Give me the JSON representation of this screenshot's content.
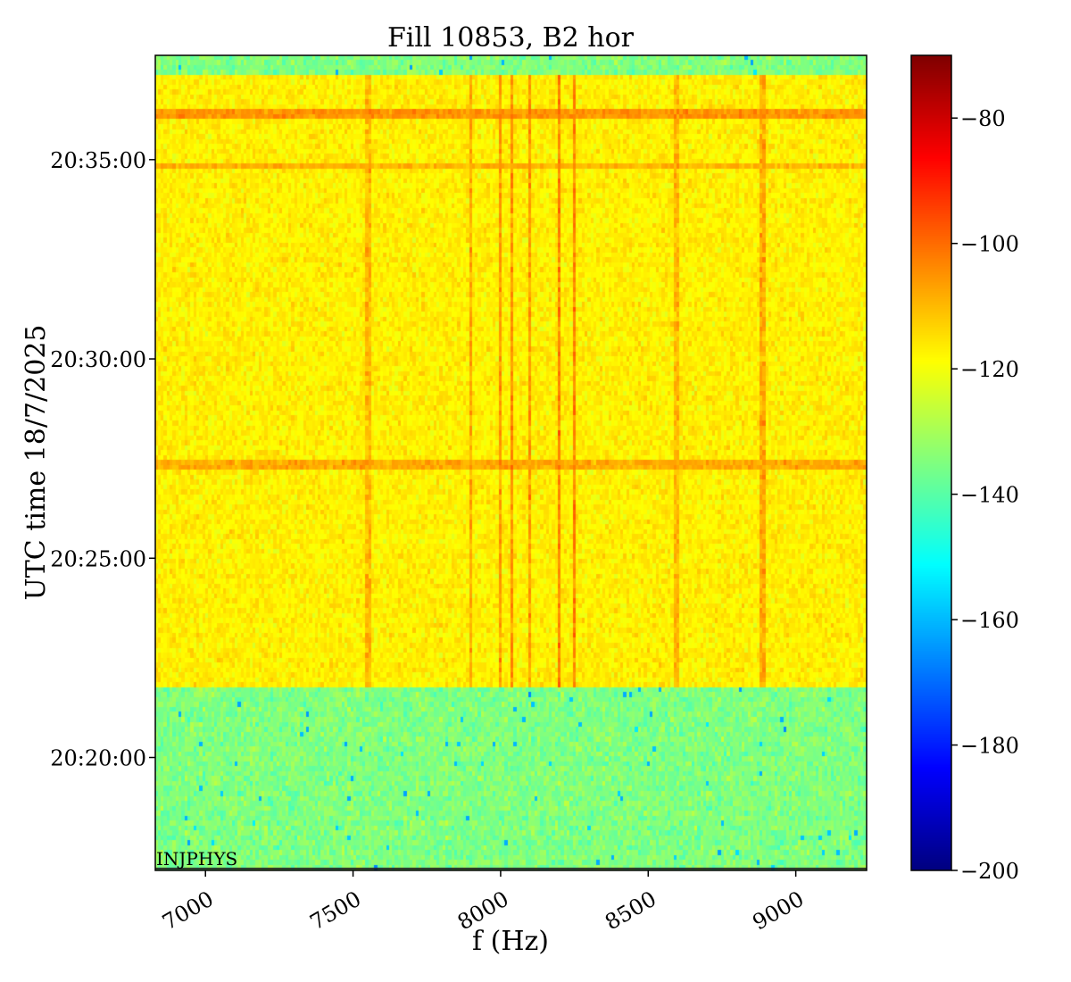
{
  "chart_data": {
    "type": "heatmap",
    "title": "Fill 10853, B2 hor",
    "xlabel": "f (Hz)",
    "ylabel": "UTC time 18/7/2025",
    "xlim": [
      6830,
      9240
    ],
    "x_ticks": [
      7000,
      7500,
      8000,
      8500,
      9000
    ],
    "x_tick_labels": [
      "7000",
      "7500",
      "8000",
      "8500",
      "9000"
    ],
    "ylim": [
      "20:17:10",
      "20:37:37"
    ],
    "y_ticks": [
      "20:20:00",
      "20:25:00",
      "20:30:00",
      "20:35:00"
    ],
    "y_tick_labels": [
      "20:20:00",
      "20:25:00",
      "20:30:00",
      "20:35:00"
    ],
    "colorbar": {
      "colormap": "jet",
      "range": [
        -200,
        -70
      ],
      "ticks": [
        -80,
        -100,
        -120,
        -140,
        -160,
        -180,
        -200
      ],
      "tick_labels": [
        "−80",
        "−100",
        "−120",
        "−140",
        "−160",
        "−180",
        "−200"
      ]
    },
    "regions": [
      {
        "t_start": "20:17:10",
        "t_end": "20:21:45",
        "level_db": -135,
        "noise_db": 8
      },
      {
        "t_start": "20:21:45",
        "t_end": "20:37:10",
        "level_db": -117,
        "noise_db": 6
      },
      {
        "t_start": "20:37:10",
        "t_end": "20:37:37",
        "level_db": -135,
        "noise_db": 8
      }
    ],
    "vertical_lines": [
      {
        "f_hz": 7550,
        "level_db": -110
      },
      {
        "f_hz": 7900,
        "level_db": -108
      },
      {
        "f_hz": 8000,
        "level_db": -106
      },
      {
        "f_hz": 8040,
        "level_db": -105
      },
      {
        "f_hz": 8100,
        "level_db": -106
      },
      {
        "f_hz": 8200,
        "level_db": -103
      },
      {
        "f_hz": 8250,
        "level_db": -103
      },
      {
        "f_hz": 8600,
        "level_db": -110
      },
      {
        "f_hz": 8890,
        "level_db": -108
      }
    ],
    "horizontal_lines": [
      {
        "t": "20:36:10",
        "level_db": -105
      },
      {
        "t": "20:34:50",
        "level_db": -109
      },
      {
        "t": "20:27:20",
        "level_db": -108
      }
    ],
    "annotations": [
      {
        "text": "INJPHYS",
        "t": "20:17:10",
        "f_hz": 6830
      }
    ]
  }
}
